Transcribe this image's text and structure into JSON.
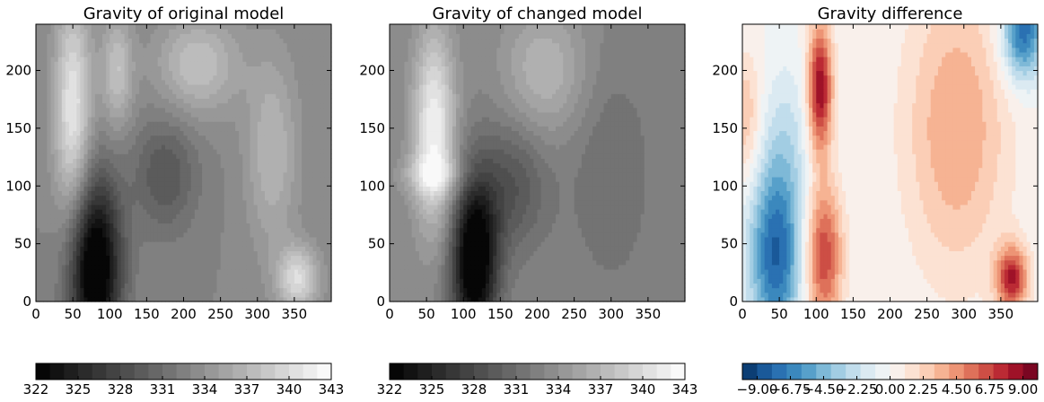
{
  "chart_data": [
    {
      "type": "heatmap",
      "title": "Gravity of original model",
      "colormap": "gray",
      "xlim": [
        0,
        400
      ],
      "ylim": [
        0,
        240
      ],
      "xticks": [
        "0",
        "50",
        "100",
        "150",
        "200",
        "250",
        "300",
        "350"
      ],
      "yticks": [
        "0",
        "50",
        "100",
        "150",
        "200"
      ],
      "x_tick_values": [
        0,
        50,
        100,
        150,
        200,
        250,
        300,
        350
      ],
      "y_tick_values": [
        0,
        50,
        100,
        150,
        200
      ],
      "colorbar": {
        "min": 322,
        "max": 343,
        "levels": 21,
        "ticks": [
          "322",
          "325",
          "328",
          "331",
          "334",
          "337",
          "340",
          "343"
        ],
        "tick_values": [
          322,
          325,
          328,
          331,
          334,
          337,
          340,
          343
        ]
      },
      "features": [
        {
          "x": 80,
          "y": 30,
          "sx": 25,
          "sy": 55,
          "amp": -13
        },
        {
          "x": 50,
          "y": 165,
          "sx": 18,
          "sy": 70,
          "amp": 8
        },
        {
          "x": 110,
          "y": 200,
          "sx": 15,
          "sy": 35,
          "amp": 5
        },
        {
          "x": 220,
          "y": 205,
          "sx": 40,
          "sy": 30,
          "amp": 5
        },
        {
          "x": 175,
          "y": 110,
          "sx": 30,
          "sy": 35,
          "amp": -4
        },
        {
          "x": 355,
          "y": 20,
          "sx": 20,
          "sy": 20,
          "amp": 7
        },
        {
          "x": 320,
          "y": 130,
          "sx": 25,
          "sy": 60,
          "amp": 4
        }
      ],
      "base": 333
    },
    {
      "type": "heatmap",
      "title": "Gravity of changed model",
      "colormap": "gray",
      "xlim": [
        0,
        400
      ],
      "ylim": [
        0,
        240
      ],
      "xticks": [
        "0",
        "50",
        "100",
        "150",
        "200",
        "250",
        "300",
        "350"
      ],
      "yticks": [
        "0",
        "50",
        "100",
        "150",
        "200"
      ],
      "x_tick_values": [
        0,
        50,
        100,
        150,
        200,
        250,
        300,
        350
      ],
      "y_tick_values": [
        0,
        50,
        100,
        150,
        200
      ],
      "colorbar": {
        "min": 322,
        "max": 343,
        "levels": 21,
        "ticks": [
          "322",
          "325",
          "328",
          "331",
          "334",
          "337",
          "340",
          "343"
        ],
        "tick_values": [
          322,
          325,
          328,
          331,
          334,
          337,
          340,
          343
        ]
      },
      "features": [
        {
          "x": 115,
          "y": 35,
          "sx": 22,
          "sy": 50,
          "amp": -13
        },
        {
          "x": 60,
          "y": 150,
          "sx": 20,
          "sy": 60,
          "amp": 9
        },
        {
          "x": 60,
          "y": 110,
          "sx": 30,
          "sy": 12,
          "amp": 4
        },
        {
          "x": 210,
          "y": 200,
          "sx": 40,
          "sy": 40,
          "amp": 4
        },
        {
          "x": 165,
          "y": 100,
          "sx": 35,
          "sy": 40,
          "amp": -4
        },
        {
          "x": 300,
          "y": 110,
          "sx": 40,
          "sy": 70,
          "amp": -2
        }
      ],
      "base": 333
    },
    {
      "type": "heatmap",
      "title": "Gravity difference",
      "colormap": "RdBu_r",
      "xlim": [
        0,
        400
      ],
      "ylim": [
        0,
        240
      ],
      "xticks": [
        "0",
        "50",
        "100",
        "150",
        "200",
        "250",
        "300",
        "350"
      ],
      "yticks": [
        "0",
        "50",
        "100",
        "150",
        "200"
      ],
      "x_tick_values": [
        0,
        50,
        100,
        150,
        200,
        250,
        300,
        350
      ],
      "y_tick_values": [
        0,
        50,
        100,
        150,
        200
      ],
      "colorbar": {
        "min": -10,
        "max": 10,
        "levels": 20,
        "ticks": [
          "−9.00",
          "−6.75",
          "−4.50",
          "−2.25",
          "0.00",
          "2.25",
          "4.50",
          "6.75",
          "9.00"
        ],
        "tick_values": [
          -9,
          -6.75,
          -4.5,
          -2.25,
          0,
          2.25,
          4.5,
          6.75,
          9
        ]
      },
      "features": [
        {
          "x": 45,
          "y": 40,
          "sx": 25,
          "sy": 55,
          "amp": -8
        },
        {
          "x": 110,
          "y": 40,
          "sx": 18,
          "sy": 45,
          "amp": 7
        },
        {
          "x": 105,
          "y": 185,
          "sx": 12,
          "sy": 40,
          "amp": 9
        },
        {
          "x": 60,
          "y": 140,
          "sx": 25,
          "sy": 50,
          "amp": -2
        },
        {
          "x": 290,
          "y": 150,
          "sx": 50,
          "sy": 90,
          "amp": 4
        },
        {
          "x": 380,
          "y": 235,
          "sx": 20,
          "sy": 30,
          "amp": -8
        },
        {
          "x": 365,
          "y": 20,
          "sx": 15,
          "sy": 20,
          "amp": 8
        },
        {
          "x": 5,
          "y": 160,
          "sx": 15,
          "sy": 40,
          "amp": 3
        }
      ],
      "base": 0
    }
  ]
}
